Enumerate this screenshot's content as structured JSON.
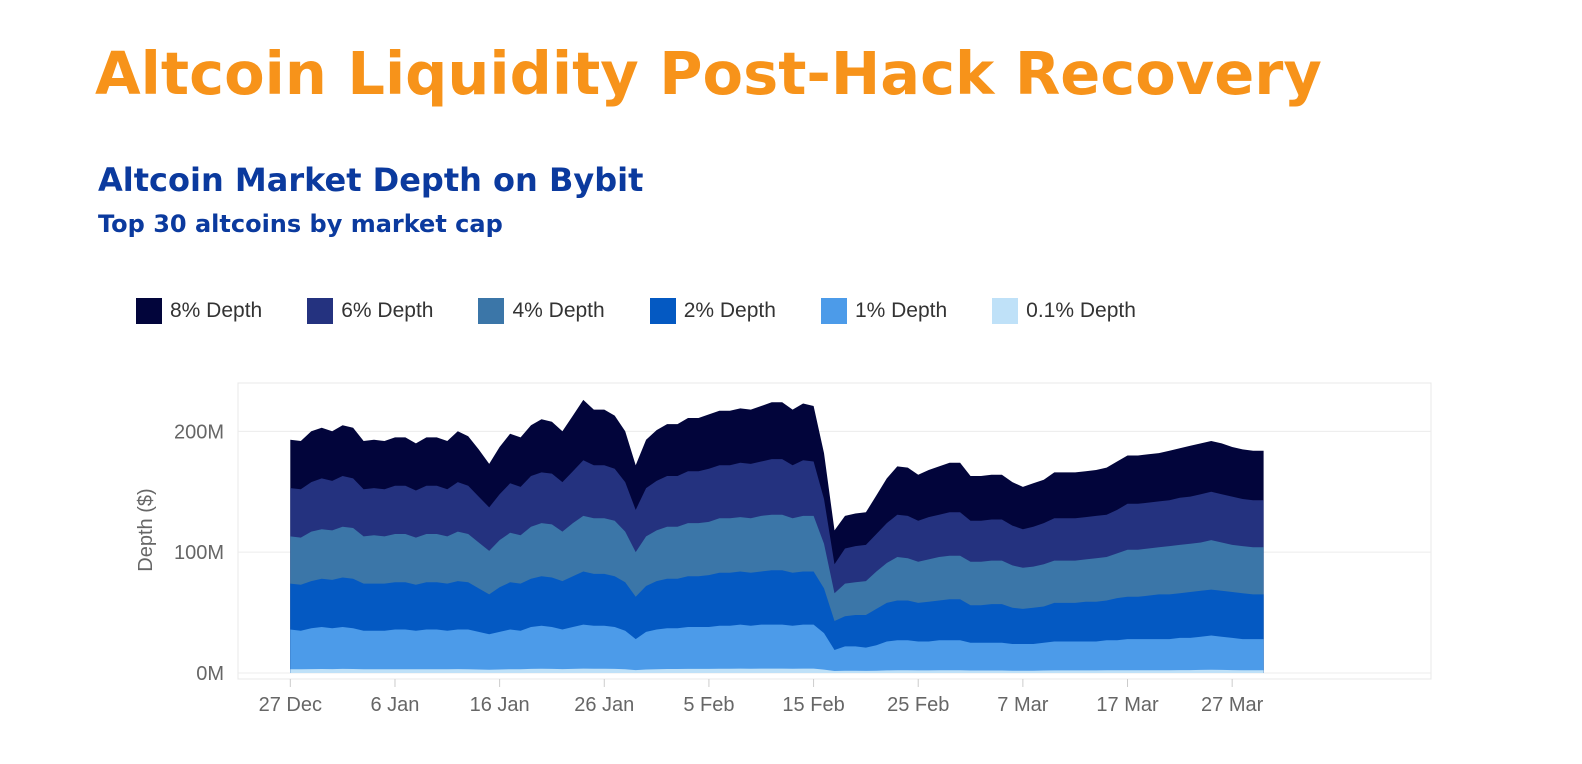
{
  "page": {
    "title": "Altcoin Liquidity Post-Hack Recovery",
    "title_color": "#f7931a",
    "heading_color": "#0b3a9e"
  },
  "chart_data": {
    "type": "area",
    "stacked": false,
    "title": "Altcoin Market Depth on Bybit",
    "subtitle": "Top 30 altcoins by market cap",
    "ylabel": "Depth ($)",
    "xlabel": "",
    "ylim": [
      -5,
      240
    ],
    "y_unit": "M",
    "yticks": [
      {
        "value": 0,
        "label": "0M"
      },
      {
        "value": 100,
        "label": "100M"
      },
      {
        "value": 200,
        "label": "200M"
      }
    ],
    "xlim": [
      "2024-12-22",
      "2025-04-15"
    ],
    "xticks": [
      {
        "date": "2024-12-27",
        "label": "27 Dec"
      },
      {
        "date": "2025-01-06",
        "label": "6 Jan"
      },
      {
        "date": "2025-01-16",
        "label": "16 Jan"
      },
      {
        "date": "2025-01-26",
        "label": "26 Jan"
      },
      {
        "date": "2025-02-05",
        "label": "5 Feb"
      },
      {
        "date": "2025-02-15",
        "label": "15 Feb"
      },
      {
        "date": "2025-02-25",
        "label": "25 Feb"
      },
      {
        "date": "2025-03-07",
        "label": "7 Mar"
      },
      {
        "date": "2025-03-17",
        "label": "17 Mar"
      },
      {
        "date": "2025-03-27",
        "label": "27 Mar"
      }
    ],
    "grid": true,
    "legend_position": "top-left",
    "x": [
      "2024-12-27",
      "2024-12-28",
      "2024-12-29",
      "2024-12-30",
      "2024-12-31",
      "2025-01-01",
      "2025-01-02",
      "2025-01-03",
      "2025-01-04",
      "2025-01-05",
      "2025-01-06",
      "2025-01-07",
      "2025-01-08",
      "2025-01-09",
      "2025-01-10",
      "2025-01-11",
      "2025-01-12",
      "2025-01-13",
      "2025-01-14",
      "2025-01-15",
      "2025-01-16",
      "2025-01-17",
      "2025-01-18",
      "2025-01-19",
      "2025-01-20",
      "2025-01-21",
      "2025-01-22",
      "2025-01-23",
      "2025-01-24",
      "2025-01-25",
      "2025-01-26",
      "2025-01-27",
      "2025-01-28",
      "2025-01-29",
      "2025-01-30",
      "2025-01-31",
      "2025-02-01",
      "2025-02-02",
      "2025-02-03",
      "2025-02-04",
      "2025-02-05",
      "2025-02-06",
      "2025-02-07",
      "2025-02-08",
      "2025-02-09",
      "2025-02-10",
      "2025-02-11",
      "2025-02-12",
      "2025-02-13",
      "2025-02-14",
      "2025-02-15",
      "2025-02-16",
      "2025-02-17",
      "2025-02-18",
      "2025-02-19",
      "2025-02-20",
      "2025-02-21",
      "2025-02-22",
      "2025-02-23",
      "2025-02-24",
      "2025-02-25",
      "2025-02-26",
      "2025-02-27",
      "2025-02-28",
      "2025-03-01",
      "2025-03-02",
      "2025-03-03",
      "2025-03-04",
      "2025-03-05",
      "2025-03-06",
      "2025-03-07",
      "2025-03-08",
      "2025-03-09",
      "2025-03-10",
      "2025-03-11",
      "2025-03-12",
      "2025-03-13",
      "2025-03-14",
      "2025-03-15",
      "2025-03-16",
      "2025-03-17",
      "2025-03-18",
      "2025-03-19",
      "2025-03-20",
      "2025-03-21",
      "2025-03-22",
      "2025-03-23",
      "2025-03-24",
      "2025-03-25",
      "2025-03-26",
      "2025-03-27",
      "2025-03-28",
      "2025-03-29",
      "2025-03-30"
    ],
    "series": [
      {
        "name": "8% Depth",
        "color": "#02053b",
        "values": [
          193,
          192,
          200,
          203,
          200,
          205,
          203,
          192,
          193,
          192,
          195,
          195,
          190,
          195,
          195,
          192,
          200,
          196,
          185,
          173,
          187,
          198,
          195,
          205,
          210,
          208,
          200,
          213,
          226,
          218,
          218,
          213,
          200,
          172,
          193,
          201,
          206,
          206,
          211,
          211,
          214,
          217,
          217,
          219,
          218,
          221,
          224,
          224,
          218,
          223,
          221,
          182,
          118,
          130,
          132,
          133,
          147,
          161,
          171,
          170,
          164,
          168,
          171,
          174,
          174,
          163,
          163,
          164,
          164,
          158,
          154,
          157,
          160,
          166,
          166,
          166,
          167,
          168,
          170,
          175,
          180,
          180,
          181,
          182,
          184,
          186,
          188,
          190,
          192,
          190,
          187,
          185,
          184,
          184
        ]
      },
      {
        "name": "6% Depth",
        "color": "#24327f",
        "values": [
          153,
          152,
          158,
          161,
          159,
          163,
          161,
          152,
          153,
          152,
          155,
          155,
          151,
          155,
          155,
          152,
          158,
          155,
          146,
          137,
          148,
          157,
          154,
          163,
          166,
          165,
          158,
          167,
          176,
          172,
          172,
          169,
          158,
          135,
          153,
          159,
          163,
          163,
          167,
          167,
          169,
          172,
          172,
          174,
          173,
          175,
          177,
          177,
          172,
          176,
          175,
          144,
          90,
          103,
          105,
          106,
          115,
          124,
          131,
          130,
          126,
          129,
          131,
          133,
          133,
          126,
          126,
          127,
          127,
          122,
          119,
          121,
          124,
          128,
          128,
          128,
          129,
          130,
          131,
          135,
          140,
          140,
          141,
          142,
          143,
          145,
          146,
          148,
          150,
          148,
          146,
          144,
          143,
          143
        ]
      },
      {
        "name": "4% Depth",
        "color": "#3b76a8",
        "values": [
          113,
          112,
          117,
          119,
          118,
          121,
          120,
          113,
          114,
          113,
          115,
          115,
          112,
          115,
          115,
          113,
          117,
          115,
          108,
          101,
          110,
          116,
          114,
          121,
          124,
          123,
          117,
          124,
          130,
          128,
          128,
          126,
          117,
          100,
          113,
          118,
          121,
          121,
          124,
          124,
          125,
          128,
          128,
          129,
          128,
          130,
          131,
          131,
          128,
          130,
          130,
          107,
          66,
          74,
          75,
          76,
          84,
          91,
          96,
          95,
          92,
          94,
          96,
          97,
          97,
          92,
          92,
          93,
          93,
          89,
          87,
          88,
          90,
          93,
          93,
          93,
          94,
          95,
          96,
          99,
          102,
          102,
          103,
          104,
          105,
          106,
          107,
          108,
          110,
          108,
          106,
          105,
          104,
          104
        ]
      },
      {
        "name": "2% Depth",
        "color": "#0459c2",
        "values": [
          74,
          73,
          76,
          78,
          77,
          79,
          78,
          74,
          74,
          74,
          75,
          75,
          73,
          75,
          75,
          74,
          76,
          75,
          70,
          65,
          71,
          75,
          74,
          78,
          80,
          79,
          76,
          80,
          84,
          82,
          82,
          80,
          75,
          63,
          72,
          76,
          78,
          78,
          80,
          80,
          81,
          83,
          83,
          84,
          83,
          84,
          85,
          85,
          83,
          84,
          84,
          70,
          43,
          47,
          48,
          48,
          53,
          58,
          60,
          60,
          58,
          59,
          60,
          61,
          61,
          56,
          56,
          57,
          57,
          54,
          53,
          54,
          55,
          58,
          58,
          58,
          59,
          59,
          60,
          62,
          63,
          63,
          64,
          65,
          65,
          66,
          67,
          68,
          69,
          68,
          67,
          66,
          65,
          65
        ]
      },
      {
        "name": "1% Depth",
        "color": "#4c9be9",
        "values": [
          36,
          35,
          37,
          38,
          37,
          38,
          37,
          35,
          35,
          35,
          36,
          36,
          35,
          36,
          36,
          35,
          36,
          36,
          34,
          32,
          34,
          36,
          35,
          38,
          39,
          38,
          36,
          38,
          40,
          39,
          39,
          38,
          35,
          28,
          34,
          36,
          37,
          37,
          38,
          38,
          38,
          39,
          39,
          40,
          39,
          40,
          40,
          40,
          39,
          40,
          40,
          33,
          19,
          22,
          22,
          21,
          23,
          26,
          27,
          27,
          26,
          26,
          27,
          27,
          27,
          25,
          25,
          25,
          25,
          24,
          24,
          24,
          25,
          26,
          26,
          26,
          26,
          26,
          27,
          27,
          28,
          28,
          28,
          28,
          28,
          29,
          29,
          30,
          31,
          30,
          29,
          28,
          28,
          28
        ]
      },
      {
        "name": "0.1% Depth",
        "color": "#bfe1f8",
        "values": [
          3.0,
          3.0,
          3.2,
          3.3,
          3.2,
          3.4,
          3.3,
          3.0,
          3.0,
          3.0,
          3.1,
          3.1,
          3.0,
          3.1,
          3.1,
          3.0,
          3.2,
          3.1,
          2.9,
          2.7,
          2.9,
          3.1,
          3.0,
          3.4,
          3.5,
          3.4,
          3.2,
          3.4,
          3.6,
          3.5,
          3.5,
          3.4,
          3.0,
          2.4,
          2.9,
          3.1,
          3.3,
          3.3,
          3.4,
          3.4,
          3.4,
          3.5,
          3.5,
          3.6,
          3.5,
          3.6,
          3.6,
          3.6,
          3.5,
          3.6,
          3.6,
          2.8,
          1.6,
          1.8,
          1.8,
          1.7,
          1.9,
          2.1,
          2.2,
          2.2,
          2.1,
          2.1,
          2.2,
          2.2,
          2.2,
          2.0,
          2.0,
          2.0,
          2.0,
          1.9,
          1.9,
          1.9,
          2.0,
          2.1,
          2.1,
          2.1,
          2.1,
          2.1,
          2.2,
          2.2,
          2.3,
          2.3,
          2.3,
          2.3,
          2.3,
          2.4,
          2.4,
          2.5,
          2.6,
          2.5,
          2.4,
          2.3,
          2.3,
          2.3
        ]
      }
    ]
  }
}
